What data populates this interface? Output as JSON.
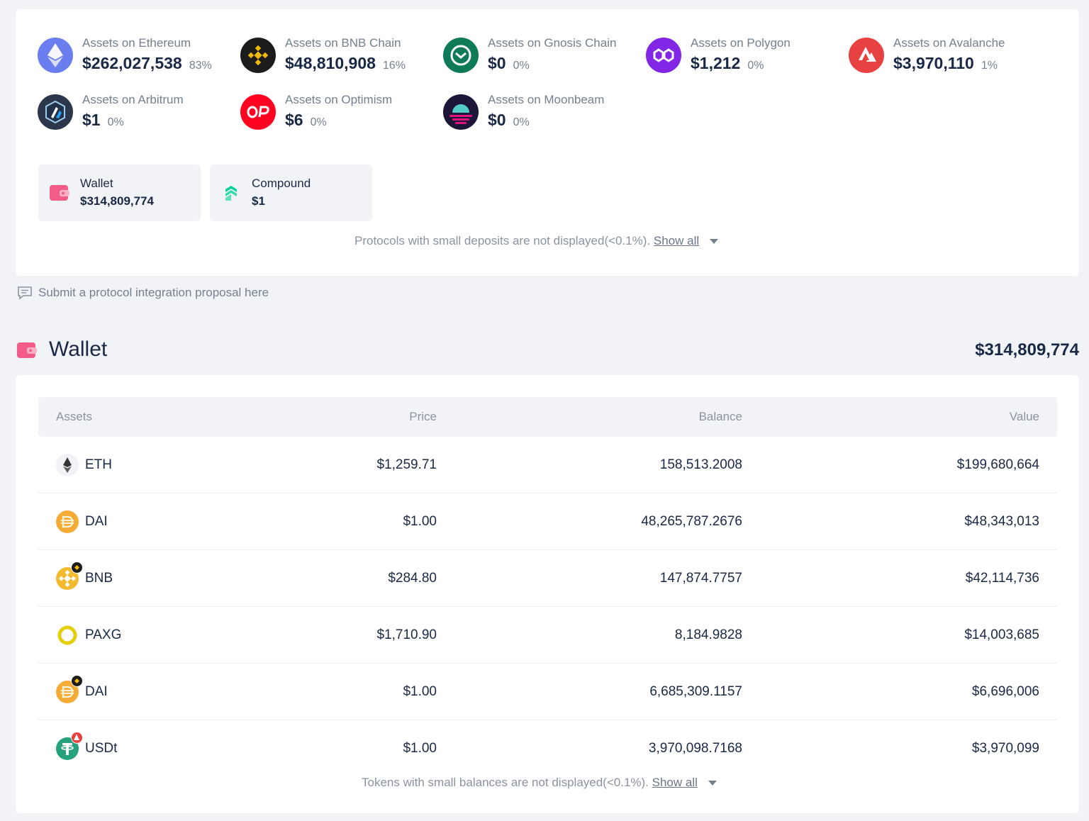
{
  "chains": [
    {
      "label": "Assets on Ethereum",
      "value": "$262,027,538",
      "pct": "83%",
      "icon": "ethereum-icon",
      "color": "#6a7ef0"
    },
    {
      "label": "Assets on BNB Chain",
      "value": "$48,810,908",
      "pct": "16%",
      "icon": "bnb-chain-icon",
      "color": "#1c1c1c"
    },
    {
      "label": "Assets on Gnosis Chain",
      "value": "$0",
      "pct": "0%",
      "icon": "gnosis-chain-icon",
      "color": "#0f7a57"
    },
    {
      "label": "Assets on Polygon",
      "value": "$1,212",
      "pct": "0%",
      "icon": "polygon-icon",
      "color": "#8227e6"
    },
    {
      "label": "Assets on Avalanche",
      "value": "$3,970,110",
      "pct": "1%",
      "icon": "avalanche-icon",
      "color": "#e84142"
    },
    {
      "label": "Assets on Arbitrum",
      "value": "$1",
      "pct": "0%",
      "icon": "arbitrum-icon",
      "color": "#2c374b"
    },
    {
      "label": "Assets on Optimism",
      "value": "$6",
      "pct": "0%",
      "icon": "optimism-icon",
      "color": "#ff0420"
    },
    {
      "label": "Assets on Moonbeam",
      "value": "$0",
      "pct": "0%",
      "icon": "moonbeam-icon",
      "color": "#1e1638"
    }
  ],
  "protocols": [
    {
      "name": "Wallet",
      "value": "$314,809,774",
      "icon": "wallet-icon"
    },
    {
      "name": "Compound",
      "value": "$1",
      "icon": "compound-icon"
    }
  ],
  "protocols_note": {
    "text": "Protocols with small deposits are not displayed(<0.1%).",
    "show_all": "Show all"
  },
  "proposal": {
    "text": "Submit a protocol integration proposal here",
    "icon": "comment-icon"
  },
  "wallet": {
    "title": "Wallet",
    "total": "$314,809,774",
    "icon": "wallet-icon",
    "columns": {
      "assets": "Assets",
      "price": "Price",
      "balance": "Balance",
      "value": "Value"
    },
    "rows": [
      {
        "symbol": "ETH",
        "price": "$1,259.71",
        "balance": "158,513.2008",
        "value": "$199,680,664",
        "icon": "eth-token-icon"
      },
      {
        "symbol": "DAI",
        "price": "$1.00",
        "balance": "48,265,787.2676",
        "value": "$48,343,013",
        "icon": "dai-token-icon"
      },
      {
        "symbol": "BNB",
        "price": "$284.80",
        "balance": "147,874.7757",
        "value": "$42,114,736",
        "icon": "bnb-token-icon",
        "badge": "bnb-chain-badge-icon"
      },
      {
        "symbol": "PAXG",
        "price": "$1,710.90",
        "balance": "8,184.9828",
        "value": "$14,003,685",
        "icon": "paxg-token-icon"
      },
      {
        "symbol": "DAI",
        "price": "$1.00",
        "balance": "6,685,309.1157",
        "value": "$6,696,006",
        "icon": "dai-token-icon",
        "badge": "bnb-chain-badge-icon"
      },
      {
        "symbol": "USDt",
        "price": "$1.00",
        "balance": "3,970,098.7168",
        "value": "$3,970,099",
        "icon": "usdt-token-icon",
        "badge": "avalanche-badge-icon"
      }
    ],
    "note": {
      "text": "Tokens with small balances are not displayed(<0.1%).",
      "show_all": "Show all"
    }
  }
}
